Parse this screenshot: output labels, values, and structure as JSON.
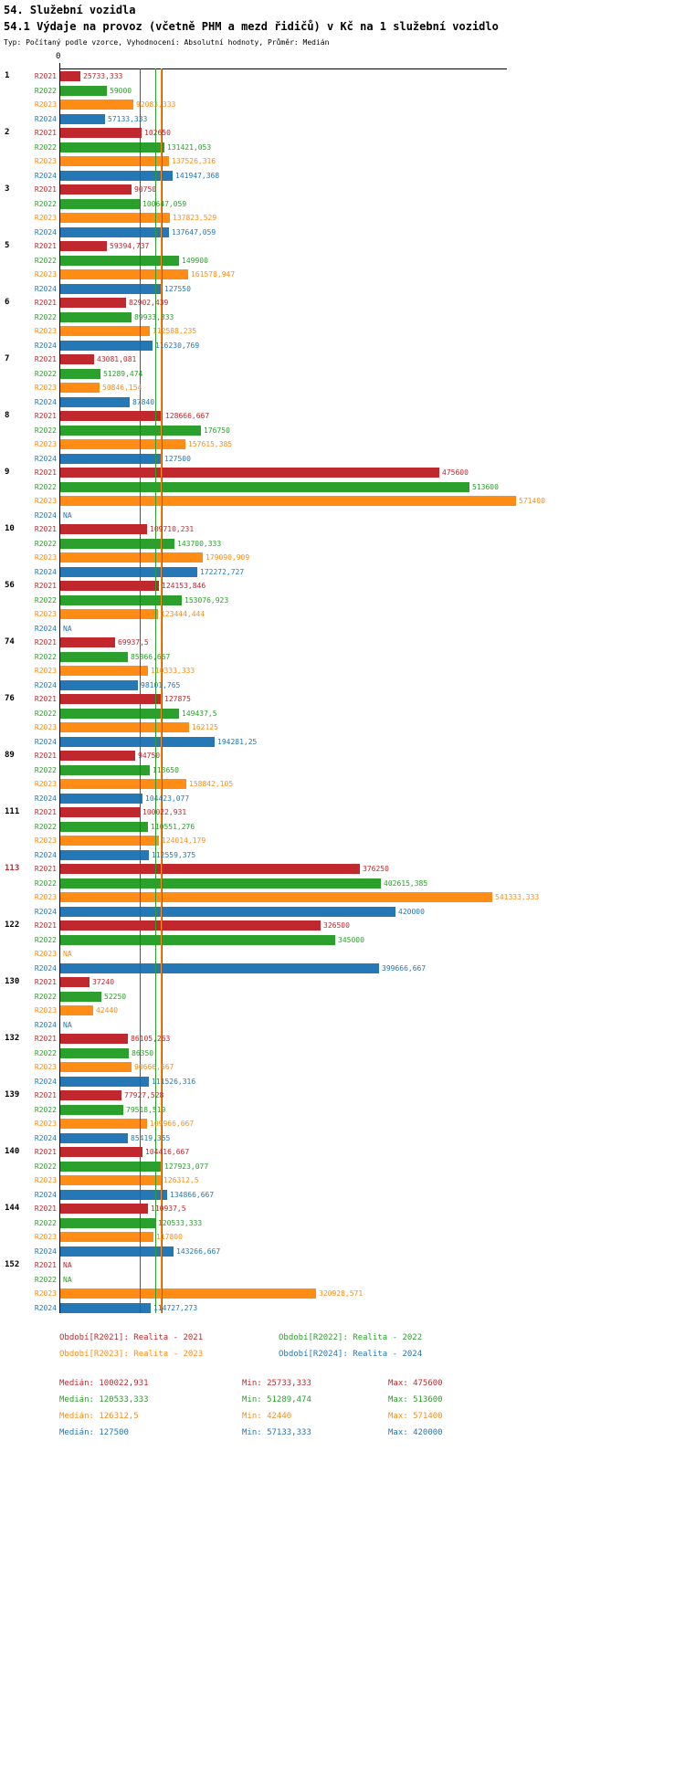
{
  "header": {
    "title": "54. Služební vozidla",
    "subtitle": "54.1 Výdaje na provoz (včetně PHM a mezd řidičů) v Kč na 1 služební vozidlo",
    "type_line": "Typ: Počítaný podle vzorce, Vyhodnocení: Absolutní hodnoty, Průměr: Medián"
  },
  "chart_data": {
    "type": "bar",
    "orientation": "horizontal",
    "title": "54.1 Výdaje na provoz (včetně PHM a mezd řidičů) v Kč na 1 služební vozidlo",
    "axis": {
      "zero_label": "0"
    },
    "series_labels": [
      "R2021",
      "R2022",
      "R2023",
      "R2024"
    ],
    "series_colors": [
      "#c1282e",
      "#2ca02c",
      "#ff8c14",
      "#2577b5"
    ],
    "medians": [
      100022.931,
      120533.333,
      126312.5,
      127500
    ],
    "groups": [
      {
        "id": "1",
        "highlight": false,
        "bars": [
          {
            "label": "25733,333",
            "value": 25733.333
          },
          {
            "label": "59000",
            "value": 59000
          },
          {
            "label": "92083,333",
            "value": 92083.333
          },
          {
            "label": "57133,333",
            "value": 57133.333
          }
        ]
      },
      {
        "id": "2",
        "highlight": false,
        "bars": [
          {
            "label": "102650",
            "value": 102650
          },
          {
            "label": "131421,053",
            "value": 131421.053
          },
          {
            "label": "137526,316",
            "value": 137526.316
          },
          {
            "label": "141947,368",
            "value": 141947.368
          }
        ]
      },
      {
        "id": "3",
        "highlight": false,
        "bars": [
          {
            "label": "90750",
            "value": 90750
          },
          {
            "label": "100647,059",
            "value": 100647.059
          },
          {
            "label": "137823,529",
            "value": 137823.529
          },
          {
            "label": "137647,059",
            "value": 137647.059
          }
        ]
      },
      {
        "id": "5",
        "highlight": false,
        "bars": [
          {
            "label": "59394,737",
            "value": 59394.737
          },
          {
            "label": "149900",
            "value": 149900
          },
          {
            "label": "161578,947",
            "value": 161578.947
          },
          {
            "label": "127550",
            "value": 127550
          }
        ]
      },
      {
        "id": "6",
        "highlight": false,
        "bars": [
          {
            "label": "82902,439",
            "value": 82902.439
          },
          {
            "label": "89933,333",
            "value": 89933.333
          },
          {
            "label": "112588,235",
            "value": 112588.235
          },
          {
            "label": "116230,769",
            "value": 116230.769
          }
        ]
      },
      {
        "id": "7",
        "highlight": false,
        "bars": [
          {
            "label": "43081,081",
            "value": 43081.081
          },
          {
            "label": "51289,474",
            "value": 51289.474
          },
          {
            "label": "50846,154",
            "value": 50846.154
          },
          {
            "label": "87840",
            "value": 87840
          }
        ]
      },
      {
        "id": "8",
        "highlight": false,
        "bars": [
          {
            "label": "128666,667",
            "value": 128666.667
          },
          {
            "label": "176750",
            "value": 176750
          },
          {
            "label": "157615,385",
            "value": 157615.385
          },
          {
            "label": "127500",
            "value": 127500
          }
        ]
      },
      {
        "id": "9",
        "highlight": false,
        "bars": [
          {
            "label": "475600",
            "value": 475600
          },
          {
            "label": "513600",
            "value": 513600
          },
          {
            "label": "571400",
            "value": 571400
          },
          {
            "label": "NA",
            "value": null
          }
        ]
      },
      {
        "id": "10",
        "highlight": false,
        "bars": [
          {
            "label": "109710,231",
            "value": 109710.231
          },
          {
            "label": "143700,333",
            "value": 143700.333
          },
          {
            "label": "179090,909",
            "value": 179090.909
          },
          {
            "label": "172272,727",
            "value": 172272.727
          }
        ]
      },
      {
        "id": "56",
        "highlight": false,
        "bars": [
          {
            "label": "124153,846",
            "value": 124153.846
          },
          {
            "label": "153076,923",
            "value": 153076.923
          },
          {
            "label": "123444,444",
            "value": 123444.444
          },
          {
            "label": "NA",
            "value": null
          }
        ]
      },
      {
        "id": "74",
        "highlight": false,
        "bars": [
          {
            "label": "69937,5",
            "value": 69937.5
          },
          {
            "label": "85866,667",
            "value": 85866.667
          },
          {
            "label": "110333,333",
            "value": 110333.333
          },
          {
            "label": "98101,765",
            "value": 98101.765
          }
        ]
      },
      {
        "id": "76",
        "highlight": false,
        "bars": [
          {
            "label": "127875",
            "value": 127875
          },
          {
            "label": "149437,5",
            "value": 149437.5
          },
          {
            "label": "162125",
            "value": 162125
          },
          {
            "label": "194281,25",
            "value": 194281.25
          }
        ]
      },
      {
        "id": "89",
        "highlight": false,
        "bars": [
          {
            "label": "94750",
            "value": 94750
          },
          {
            "label": "113650",
            "value": 113650
          },
          {
            "label": "158842,105",
            "value": 158842.105
          },
          {
            "label": "104423,077",
            "value": 104423.077
          }
        ]
      },
      {
        "id": "111",
        "highlight": false,
        "bars": [
          {
            "label": "100022,931",
            "value": 100022.931
          },
          {
            "label": "110551,276",
            "value": 110551.276
          },
          {
            "label": "124014,179",
            "value": 124014.179
          },
          {
            "label": "112559,375",
            "value": 112559.375
          }
        ]
      },
      {
        "id": "113",
        "highlight": true,
        "bars": [
          {
            "label": "376250",
            "value": 376250
          },
          {
            "label": "402615,385",
            "value": 402615.385
          },
          {
            "label": "541333,333",
            "value": 541333.333
          },
          {
            "label": "420000",
            "value": 420000
          }
        ]
      },
      {
        "id": "122",
        "highlight": false,
        "bars": [
          {
            "label": "326500",
            "value": 326500
          },
          {
            "label": "345000",
            "value": 345000
          },
          {
            "label": "NA",
            "value": null
          },
          {
            "label": "399666,667",
            "value": 399666.667
          }
        ]
      },
      {
        "id": "130",
        "highlight": false,
        "bars": [
          {
            "label": "37240",
            "value": 37240
          },
          {
            "label": "52250",
            "value": 52250
          },
          {
            "label": "42440",
            "value": 42440
          },
          {
            "label": "NA",
            "value": null
          }
        ]
      },
      {
        "id": "132",
        "highlight": false,
        "bars": [
          {
            "label": "86105,263",
            "value": 86105.263
          },
          {
            "label": "86350",
            "value": 86350
          },
          {
            "label": "90666,667",
            "value": 90666.667
          },
          {
            "label": "111526,316",
            "value": 111526.316
          }
        ]
      },
      {
        "id": "139",
        "highlight": false,
        "bars": [
          {
            "label": "77927,528",
            "value": 77927.528
          },
          {
            "label": "79518,519",
            "value": 79518.519
          },
          {
            "label": "109966,667",
            "value": 109966.667
          },
          {
            "label": "85419,355",
            "value": 85419.355
          }
        ]
      },
      {
        "id": "140",
        "highlight": false,
        "bars": [
          {
            "label": "104416,667",
            "value": 104416.667
          },
          {
            "label": "127923,077",
            "value": 127923.077
          },
          {
            "label": "126312,5",
            "value": 126312.5
          },
          {
            "label": "134866,667",
            "value": 134866.667
          }
        ]
      },
      {
        "id": "144",
        "highlight": false,
        "bars": [
          {
            "label": "110937,5",
            "value": 110937.5
          },
          {
            "label": "120533,333",
            "value": 120533.333
          },
          {
            "label": "117800",
            "value": 117800
          },
          {
            "label": "143266,667",
            "value": 143266.667
          }
        ]
      },
      {
        "id": "152",
        "highlight": false,
        "bars": [
          {
            "label": "NA",
            "value": null
          },
          {
            "label": "NA",
            "value": null
          },
          {
            "label": "320928,571",
            "value": 320928.571
          },
          {
            "label": "114727,273",
            "value": 114727.273
          }
        ]
      }
    ]
  },
  "legend": {
    "items": [
      {
        "label": "Období[R2021]: Realita - 2021"
      },
      {
        "label": "Období[R2022]: Realita - 2022"
      },
      {
        "label": "Období[R2023]: Realita - 2023"
      },
      {
        "label": "Období[R2024]: Realita - 2024"
      }
    ]
  },
  "stats": {
    "rows": [
      {
        "median": "Medián: 100022,931",
        "min": "Min: 25733,333",
        "max": "Max: 475600"
      },
      {
        "median": "Medián: 120533,333",
        "min": "Min: 51289,474",
        "max": "Max: 513600"
      },
      {
        "median": "Medián: 126312,5",
        "min": "Min: 42440",
        "max": "Max: 571400"
      },
      {
        "median": "Medián: 127500",
        "min": "Min: 57133,333",
        "max": "Max: 420000"
      }
    ]
  }
}
